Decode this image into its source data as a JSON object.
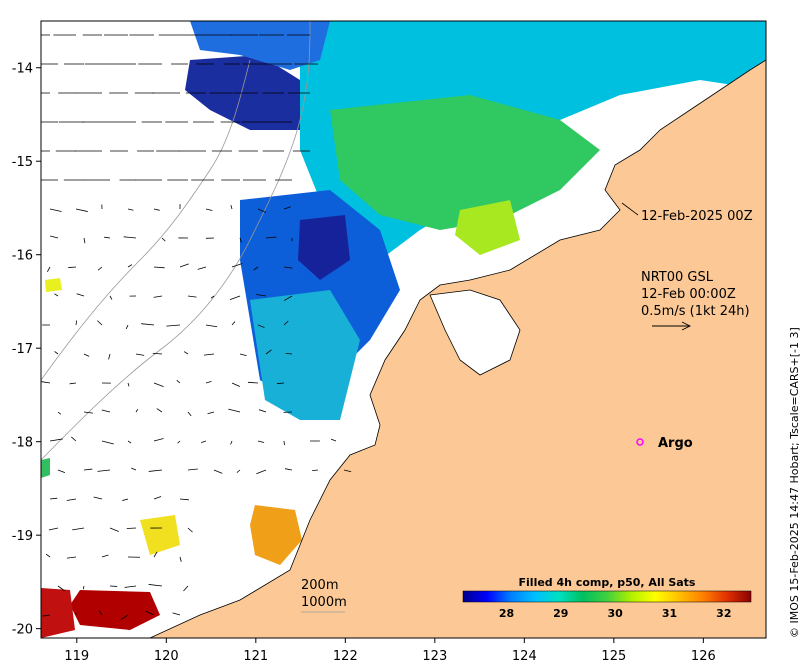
{
  "chart_data": {
    "type": "heatmap",
    "title": "Filled 4h comp, p50, All Sats",
    "x_ticks": [
      "119",
      "120",
      "121",
      "122",
      "123",
      "124",
      "125",
      "126"
    ],
    "y_ticks": [
      "-14",
      "-15",
      "-16",
      "-17",
      "-18",
      "-19",
      "-20"
    ],
    "xlim": [
      118.6,
      126.7
    ],
    "ylim": [
      -20.1,
      -13.5
    ],
    "colorbar": {
      "ticks": [
        "28",
        "29",
        "30",
        "31",
        "32"
      ],
      "range": [
        27.2,
        32.5
      ],
      "colors": [
        "#00008b",
        "#0000ff",
        "#0080ff",
        "#00c0ff",
        "#00e0c0",
        "#00c060",
        "#40d040",
        "#b0f000",
        "#ffff00",
        "#ffc000",
        "#ff8000",
        "#e03000",
        "#8b0000"
      ]
    },
    "colors": {
      "land": "#fcc996",
      "ocean": "#ffffff",
      "argo_marker": "#ff00ff"
    }
  },
  "annotations": {
    "timestamp_label": "12-Feb-2025 00Z",
    "current_source": "NRT00 GSL",
    "current_time": "12-Feb 00:00Z",
    "current_scale": "0.5m/s (1kt 24h)",
    "argo_label": "Argo",
    "contour_200": "200m",
    "contour_1000": "1000m",
    "copyright": "© IMOS 15-Feb-2025 14:47 Hobart; Tscale=CARS+[-1 3]"
  }
}
